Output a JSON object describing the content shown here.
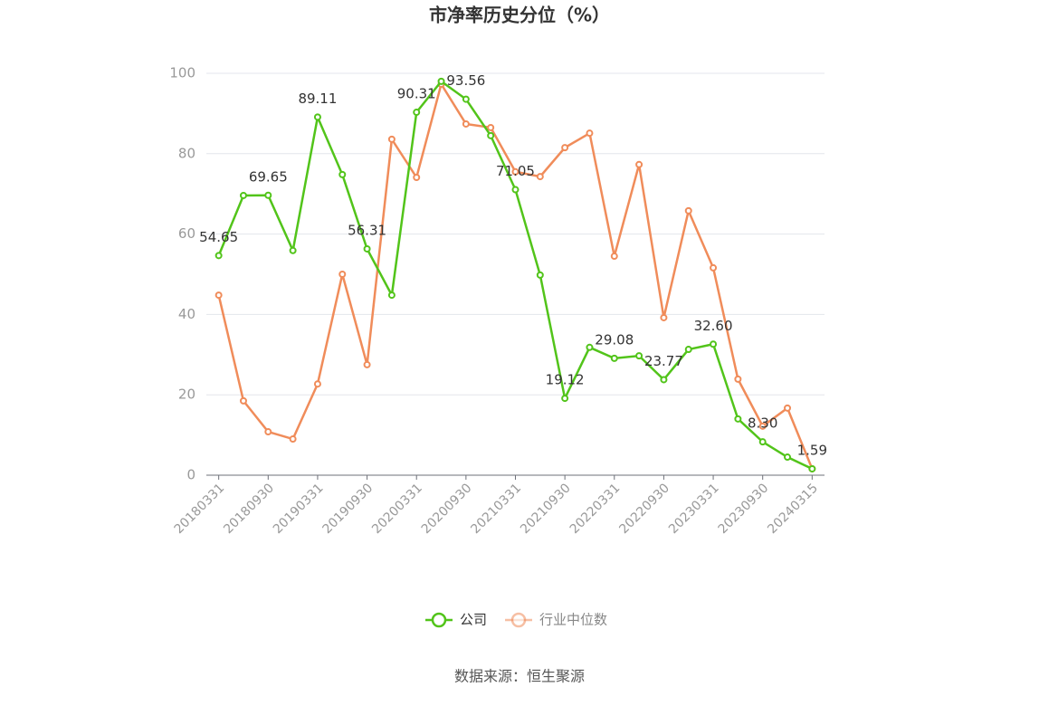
{
  "chart_data": {
    "type": "line",
    "title": "市净率历史分位（%）",
    "source": "数据来源：恒生聚源",
    "categories": [
      "20180331",
      null,
      "20180930",
      null,
      "20190331",
      null,
      "20190930",
      null,
      "20200331",
      null,
      "20200930",
      null,
      "20210331",
      null,
      "20210930",
      null,
      "20220331",
      null,
      "20220930",
      null,
      "20230331",
      null,
      "20230930",
      null,
      "20240315"
    ],
    "series": [
      {
        "name": "公司",
        "color": "#52c41a",
        "values": [
          54.65,
          69.6,
          69.65,
          55.9,
          89.11,
          74.8,
          56.31,
          44.8,
          90.31,
          98.0,
          93.56,
          84.5,
          71.05,
          49.8,
          19.12,
          31.8,
          29.08,
          29.7,
          23.77,
          31.3,
          32.6,
          14.0,
          8.3,
          4.5,
          1.59
        ],
        "value_labels": [
          "54.65",
          null,
          "69.65",
          null,
          "89.11",
          null,
          "56.31",
          null,
          "90.31",
          null,
          "93.56",
          null,
          "71.05",
          null,
          "19.12",
          null,
          "29.08",
          null,
          "23.77",
          null,
          "32.60",
          null,
          "8.30",
          null,
          "1.59"
        ]
      },
      {
        "name": "行业中位数",
        "color": "#f08c5a",
        "values": [
          44.8,
          18.5,
          10.8,
          9.0,
          22.7,
          50.0,
          27.5,
          83.6,
          74.1,
          97.3,
          87.4,
          86.5,
          75.5,
          74.3,
          81.5,
          85.1,
          54.5,
          77.3,
          39.2,
          65.8,
          51.6,
          23.9,
          12.2,
          16.7,
          1.6
        ]
      }
    ],
    "ylim": [
      0,
      100
    ],
    "yticks": [
      0,
      20,
      40,
      60,
      80,
      100
    ],
    "grid": true
  }
}
